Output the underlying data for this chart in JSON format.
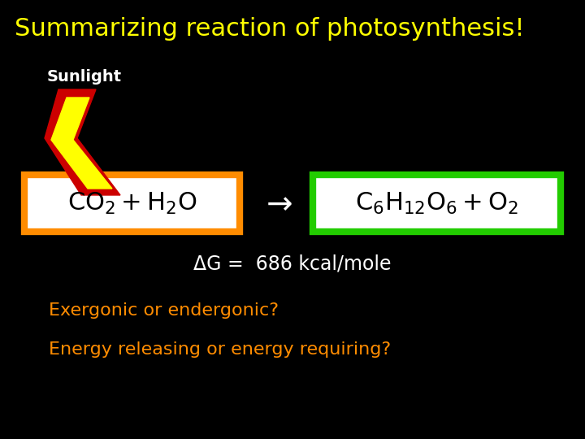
{
  "background_color": "#000000",
  "title": "Summarizing reaction of photosynthesis!",
  "title_color": "#ffff00",
  "title_fontsize": 22,
  "title_fontweight": "normal",
  "sunlight_label": "Sunlight",
  "sunlight_color": "#ffffff",
  "sunlight_fontsize": 14,
  "reactant_box_color": "#ff8c00",
  "product_box_color": "#22cc00",
  "box_bg": "#ffffff",
  "arrow_color": "#ffffff",
  "arrow_fontsize": 28,
  "equation_fontsize": 22,
  "delta_g_text": "ΔG =  686 kcal/mole",
  "delta_g_color": "#ffffff",
  "delta_g_fontsize": 17,
  "exergonic_text": "Exergonic or endergonic?",
  "exergonic_color": "#ff8c00",
  "exergonic_fontsize": 16,
  "energy_text": "Energy releasing or energy requiring?",
  "energy_color": "#ff8c00",
  "energy_fontsize": 16,
  "bolt_outer_color": "#cc0000",
  "bolt_inner_color": "#ffff00"
}
